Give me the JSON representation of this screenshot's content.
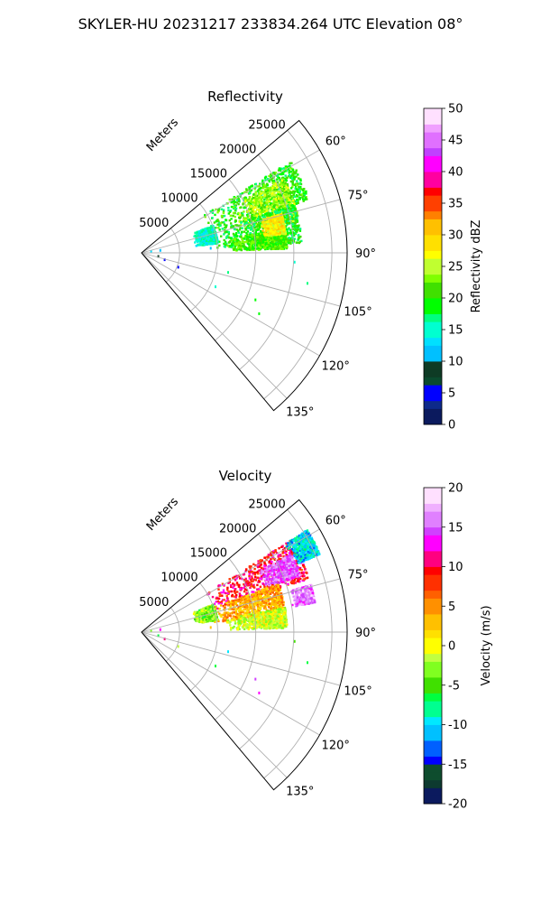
{
  "figure": {
    "suptitle": "SKYLER-HU  20231217  233834.264 UTC Elevation 08°"
  },
  "chart_data": [
    {
      "type": "heatmap",
      "subtype": "polar-sector",
      "title": "Reflectivity",
      "range_label": "Meters",
      "range_ticks": [
        5000,
        10000,
        15000,
        20000,
        25000
      ],
      "range_lim": [
        0,
        27000
      ],
      "theta_ticks": [
        "60°",
        "75°",
        "90°",
        "105°",
        "120°",
        "135°"
      ],
      "theta_tick_values": [
        60,
        75,
        90,
        105,
        120,
        135
      ],
      "theta_lim": [
        50,
        140
      ],
      "grid": true,
      "colorbar": {
        "label": "Reflectivity dBZ",
        "min": 0,
        "max": 50,
        "ticks": [
          0,
          5,
          10,
          15,
          20,
          25,
          30,
          35,
          40,
          45,
          50
        ],
        "levels": 40,
        "colors": [
          "#0b1a5e",
          "#0d2a8a",
          "#0000ff",
          "#0a4a2e",
          "#0e3b25",
          "#00c0ff",
          "#00e0ff",
          "#00ffd0",
          "#00ff80",
          "#00ff00",
          "#40e000",
          "#80ff00",
          "#c0ff30",
          "#ffff00",
          "#ffe000",
          "#ffc000",
          "#ff8000",
          "#ff4000",
          "#ff0000",
          "#ff00a0",
          "#ff00ff",
          "#c040ff",
          "#e070ff",
          "#f0a0ff",
          "#ffe0ff"
        ]
      },
      "echo_blobs": [
        {
          "theta": [
            58,
            72
          ],
          "r": [
            9000,
            23000
          ],
          "value": 20
        },
        {
          "theta": [
            62,
            78
          ],
          "r": [
            13000,
            21000
          ],
          "value": 24
        },
        {
          "theta": [
            72,
            86
          ],
          "r": [
            9000,
            21000
          ],
          "value": 19
        },
        {
          "theta": [
            68,
            82
          ],
          "r": [
            7000,
            10000
          ],
          "value": 15
        },
        {
          "theta": [
            80,
            88
          ],
          "r": [
            11000,
            19000
          ],
          "value": 21
        },
        {
          "theta": [
            74,
            82
          ],
          "r": [
            16000,
            19000
          ],
          "value": 28
        }
      ],
      "scatter_points": [
        {
          "theta": 72,
          "r": 1200,
          "value": 12
        },
        {
          "theta": 78,
          "r": 2400,
          "value": 10
        },
        {
          "theta": 98,
          "r": 2100,
          "value": 8
        },
        {
          "theta": 104,
          "r": 3000,
          "value": 4
        },
        {
          "theta": 110,
          "r": 5000,
          "value": 5
        },
        {
          "theta": 102,
          "r": 11500,
          "value": 17
        },
        {
          "theta": 114,
          "r": 10500,
          "value": 15
        },
        {
          "theta": 112,
          "r": 16000,
          "value": 18
        },
        {
          "theta": 117,
          "r": 17200,
          "value": 18
        },
        {
          "theta": 100,
          "r": 22000,
          "value": 16
        },
        {
          "theta": 93,
          "r": 20000,
          "value": 14
        },
        {
          "theta": 85,
          "r": 9000,
          "value": 11
        }
      ]
    },
    {
      "type": "heatmap",
      "subtype": "polar-sector",
      "title": "Velocity",
      "range_label": "Meters",
      "range_ticks": [
        5000,
        10000,
        15000,
        20000,
        25000
      ],
      "range_lim": [
        0,
        27000
      ],
      "theta_ticks": [
        "60°",
        "75°",
        "90°",
        "105°",
        "120°",
        "135°"
      ],
      "theta_tick_values": [
        60,
        75,
        90,
        105,
        120,
        135
      ],
      "theta_lim": [
        50,
        140
      ],
      "grid": true,
      "colorbar": {
        "label": "Velocity (m/s)",
        "min": -20,
        "max": 20,
        "ticks": [
          -20,
          -15,
          -10,
          -5,
          0,
          5,
          10,
          15,
          20
        ],
        "levels": 40,
        "colors": [
          "#0b1a5e",
          "#0d3a30",
          "#0e4d2e",
          "#0000ff",
          "#0060ff",
          "#00c0ff",
          "#00e8ff",
          "#00ff90",
          "#00ff40",
          "#40e000",
          "#80ff20",
          "#c0ff40",
          "#ffff00",
          "#ffe000",
          "#ffc000",
          "#ff9000",
          "#ff6000",
          "#ff3000",
          "#ff0000",
          "#ff0080",
          "#ff00ff",
          "#d040ff",
          "#e080ff",
          "#f0b0ff",
          "#ffe0ff"
        ]
      },
      "echo_blobs": [
        {
          "theta": [
            58,
            72
          ],
          "r": [
            9000,
            23000
          ],
          "value": 10
        },
        {
          "theta": [
            62,
            70
          ],
          "r": [
            17000,
            22000
          ],
          "value": 15
        },
        {
          "theta": [
            70,
            82
          ],
          "r": [
            9000,
            19000
          ],
          "value": 4
        },
        {
          "theta": [
            68,
            80
          ],
          "r": [
            7000,
            10000
          ],
          "value": -3
        },
        {
          "theta": [
            80,
            88
          ],
          "r": [
            11000,
            19000
          ],
          "value": -1
        },
        {
          "theta": [
            58,
            66
          ],
          "r": [
            22000,
            25500
          ],
          "value": -10
        },
        {
          "theta": [
            74,
            80
          ],
          "r": [
            20000,
            23000
          ],
          "value": 16
        }
      ],
      "scatter_points": [
        {
          "theta": 72,
          "r": 1200,
          "value": -4
        },
        {
          "theta": 78,
          "r": 2400,
          "value": 12
        },
        {
          "theta": 98,
          "r": 2100,
          "value": -6
        },
        {
          "theta": 104,
          "r": 3000,
          "value": 11
        },
        {
          "theta": 110,
          "r": 5000,
          "value": -2
        },
        {
          "theta": 102,
          "r": 11500,
          "value": -10
        },
        {
          "theta": 114,
          "r": 10500,
          "value": -6
        },
        {
          "theta": 112,
          "r": 16000,
          "value": 15
        },
        {
          "theta": 117,
          "r": 17200,
          "value": 12
        },
        {
          "theta": 100,
          "r": 22000,
          "value": -6
        },
        {
          "theta": 93,
          "r": 20000,
          "value": -5
        },
        {
          "theta": 85,
          "r": 9000,
          "value": 3
        }
      ]
    }
  ]
}
